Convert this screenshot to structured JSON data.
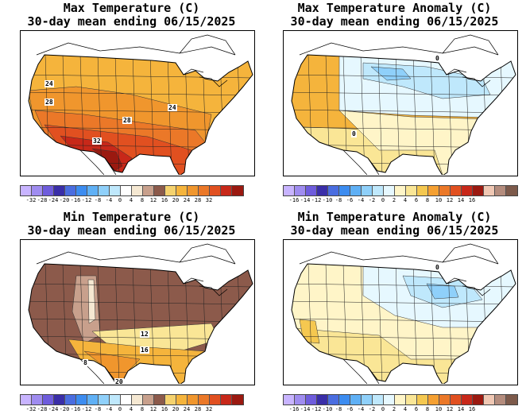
{
  "panels": [
    {
      "title_line1": "Max Temperature (C)",
      "title_line2": "30-day mean ending 06/15/2025",
      "colorbar": {
        "colors": [
          "#c8b4ff",
          "#9f8cf0",
          "#6e5cdc",
          "#3a2ea8",
          "#4a6de0",
          "#3c8cf0",
          "#5fb0f5",
          "#8fd0fa",
          "#bfe8fc",
          "#ffffff",
          "#f5e8d2",
          "#c8a08c",
          "#8c5a4b",
          "#f5d26e",
          "#f5b43c",
          "#f0962d",
          "#eb7828",
          "#e15020",
          "#c82819",
          "#9b1910"
        ],
        "labels": [
          "-32",
          "-28",
          "-24",
          "-20",
          "-16",
          "-12",
          "-8",
          "-4",
          "0",
          "4",
          "8",
          "12",
          "16",
          "20",
          "24",
          "28",
          "32"
        ]
      },
      "contour_labels": [
        "24",
        "28",
        "24",
        "28",
        "32"
      ],
      "map_colors": [
        "#f5b43c",
        "#f0962d",
        "#eb7828",
        "#e15020",
        "#c82819",
        "#9b1910"
      ]
    },
    {
      "title_line1": "Max Temperature Anomaly (C)",
      "title_line2": "30-day mean ending 06/15/2025",
      "colorbar": {
        "colors": [
          "#c8b4ff",
          "#9f8cf0",
          "#6e5cdc",
          "#3a2ea8",
          "#4a6de0",
          "#3c8cf0",
          "#5fb0f5",
          "#8fd0fa",
          "#bfe8fc",
          "#e6f8ff",
          "#fff5c8",
          "#fae696",
          "#f5c850",
          "#f5a032",
          "#eb7828",
          "#e15020",
          "#c82819",
          "#9b1910",
          "#f0c8b4",
          "#b48c7d",
          "#7d5a4b"
        ],
        "labels": [
          "-16",
          "-14",
          "-12",
          "-10",
          "-8",
          "-6",
          "-4",
          "-2",
          "0",
          "2",
          "4",
          "6",
          "8",
          "10",
          "12",
          "14",
          "16"
        ]
      },
      "contour_labels": [
        "0",
        "0"
      ],
      "map_colors": [
        "#f5b43c",
        "#fae696",
        "#fff5c8",
        "#e6f8ff",
        "#bfe8fc",
        "#8fd0fa"
      ]
    },
    {
      "title_line1": "Min Temperature (C)",
      "title_line2": "30-day mean ending 06/15/2025",
      "colorbar": {
        "colors": [
          "#c8b4ff",
          "#9f8cf0",
          "#6e5cdc",
          "#3a2ea8",
          "#4a6de0",
          "#3c8cf0",
          "#5fb0f5",
          "#8fd0fa",
          "#bfe8fc",
          "#ffffff",
          "#f5e8d2",
          "#c8a08c",
          "#8c5a4b",
          "#f5d26e",
          "#f5b43c",
          "#f0962d",
          "#eb7828",
          "#e15020",
          "#c82819",
          "#9b1910"
        ],
        "labels": [
          "-32",
          "-28",
          "-24",
          "-20",
          "-16",
          "-12",
          "-8",
          "-4",
          "0",
          "4",
          "8",
          "12",
          "16",
          "20",
          "24",
          "28",
          "32"
        ]
      },
      "contour_labels": [
        "12",
        "16",
        "8",
        "20"
      ],
      "map_colors": [
        "#8c5a4b",
        "#c8a08c",
        "#f5e8d2",
        "#fae696",
        "#f5b43c",
        "#f0962d"
      ]
    },
    {
      "title_line1": "Min Temperature Anomaly (C)",
      "title_line2": "30-day mean ending 06/15/2025",
      "colorbar": {
        "colors": [
          "#c8b4ff",
          "#9f8cf0",
          "#6e5cdc",
          "#3a2ea8",
          "#4a6de0",
          "#3c8cf0",
          "#5fb0f5",
          "#8fd0fa",
          "#bfe8fc",
          "#e6f8ff",
          "#fff5c8",
          "#fae696",
          "#f5c850",
          "#f5a032",
          "#eb7828",
          "#e15020",
          "#c82819",
          "#9b1910",
          "#f0c8b4",
          "#b48c7d",
          "#7d5a4b"
        ],
        "labels": [
          "-16",
          "-14",
          "-12",
          "-10",
          "-8",
          "-6",
          "-4",
          "-2",
          "0",
          "2",
          "4",
          "6",
          "8",
          "10",
          "12",
          "14",
          "16"
        ]
      },
      "contour_labels": [
        "0"
      ],
      "map_colors": [
        "#fff5c8",
        "#fae696",
        "#e6f8ff",
        "#bfe8fc",
        "#8fd0fa",
        "#f5c850"
      ]
    }
  ]
}
